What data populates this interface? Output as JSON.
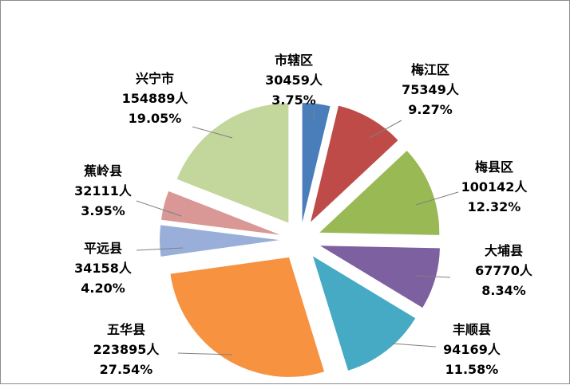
{
  "chart_data": {
    "type": "pie",
    "title": "",
    "exploded": true,
    "categories": [
      "市辖区",
      "梅江区",
      "梅县区",
      "大埔县",
      "丰顺县",
      "五华县",
      "平远县",
      "蕉岭县",
      "兴宁市"
    ],
    "values": [
      30459,
      75349,
      100142,
      67770,
      94169,
      223895,
      34158,
      32111,
      154889
    ],
    "value_labels": [
      "30459人",
      "75349人",
      "100142人",
      "67770人",
      "94169人",
      "223895人",
      "34158人",
      "32111人",
      "154889人"
    ],
    "percent_labels": [
      "3.75%",
      "9.27%",
      "12.32%",
      "8.34%",
      "11.58%",
      "27.54%",
      "4.20%",
      "3.95%",
      "19.05%"
    ],
    "colors": [
      "#4a7ebb",
      "#be4b48",
      "#98b954",
      "#7d60a0",
      "#46aac5",
      "#f69240",
      "#99afd9",
      "#d99795",
      "#c3d69b"
    ],
    "legend": false
  }
}
